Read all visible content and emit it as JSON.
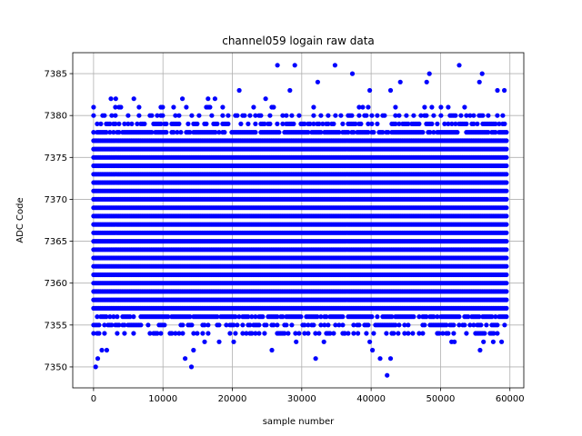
{
  "chart_data": {
    "type": "scatter",
    "title": "channel059 logain raw data",
    "xlabel": "sample number",
    "ylabel": "ADC Code",
    "xlim": [
      -3000,
      62000
    ],
    "ylim": [
      7347.5,
      7387.5
    ],
    "x_ticks": [
      0,
      10000,
      20000,
      30000,
      40000,
      50000,
      60000
    ],
    "y_ticks": [
      7350,
      7355,
      7360,
      7365,
      7370,
      7375,
      7380,
      7385
    ],
    "x_tick_labels": [
      "0",
      "10000",
      "20000",
      "30000",
      "40000",
      "50000",
      "60000"
    ],
    "y_tick_labels": [
      "7350",
      "7355",
      "7360",
      "7365",
      "7370",
      "7375",
      "7380",
      "7385"
    ],
    "grid": true,
    "marker_color": "#0000ff",
    "sample_range": [
      0,
      59500
    ],
    "dense_band": [
      7357,
      7377
    ],
    "series": [
      {
        "points": [
          [
            2500,
            7382
          ],
          [
            3200,
            7382
          ],
          [
            5800,
            7382
          ],
          [
            12800,
            7382
          ],
          [
            16500,
            7382
          ],
          [
            17500,
            7382
          ],
          [
            21000,
            7383
          ],
          [
            24800,
            7382
          ],
          [
            26500,
            7386
          ],
          [
            28300,
            7383
          ],
          [
            29000,
            7386
          ],
          [
            32300,
            7384
          ],
          [
            34800,
            7386
          ],
          [
            37300,
            7385
          ],
          [
            39800,
            7383
          ],
          [
            42800,
            7383
          ],
          [
            44200,
            7384
          ],
          [
            48000,
            7384
          ],
          [
            48400,
            7385
          ],
          [
            52700,
            7386
          ],
          [
            55600,
            7384
          ],
          [
            56000,
            7385
          ],
          [
            58200,
            7383
          ],
          [
            59200,
            7383
          ],
          [
            300,
            7350
          ],
          [
            600,
            7351
          ],
          [
            1200,
            7352
          ],
          [
            1900,
            7352
          ],
          [
            11800,
            7354
          ],
          [
            13200,
            7351
          ],
          [
            14100,
            7350
          ],
          [
            14400,
            7352
          ],
          [
            16000,
            7353
          ],
          [
            18100,
            7353
          ],
          [
            20200,
            7353
          ],
          [
            25700,
            7352
          ],
          [
            29200,
            7353
          ],
          [
            32000,
            7351
          ],
          [
            33200,
            7353
          ],
          [
            36200,
            7354
          ],
          [
            38100,
            7354
          ],
          [
            39800,
            7353
          ],
          [
            40200,
            7352
          ],
          [
            41300,
            7351
          ],
          [
            42300,
            7349
          ],
          [
            42800,
            7351
          ],
          [
            43900,
            7354
          ],
          [
            46000,
            7354
          ],
          [
            51600,
            7353
          ],
          [
            52000,
            7353
          ],
          [
            55700,
            7352
          ],
          [
            56200,
            7353
          ],
          [
            57600,
            7353
          ],
          [
            58800,
            7353
          ]
        ]
      }
    ]
  }
}
